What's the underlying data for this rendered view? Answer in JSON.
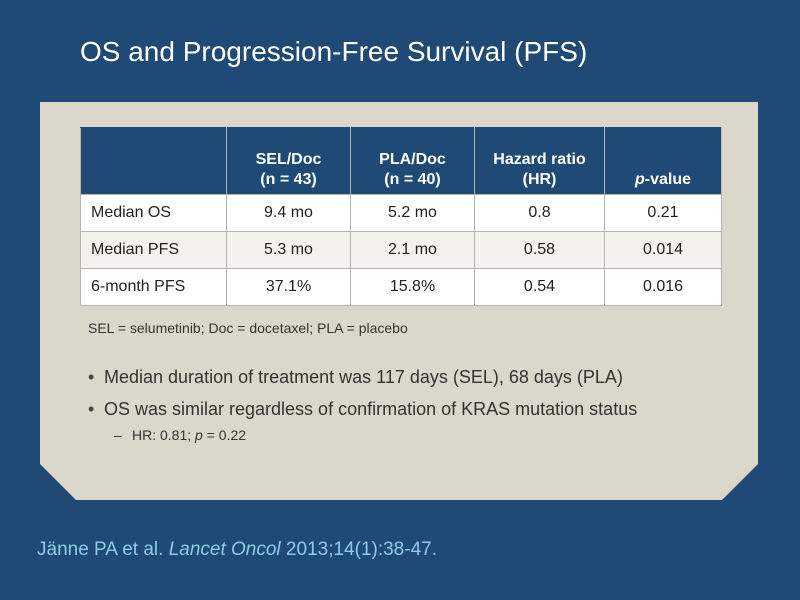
{
  "slide": {
    "title": "OS and Progression-Free Survival (PFS)"
  },
  "table": {
    "headers": [
      "",
      [
        "SEL/Doc",
        "(n = 43)"
      ],
      [
        "PLA/Doc",
        "(n = 40)"
      ],
      [
        "Hazard ratio",
        "(HR)"
      ],
      [
        "p",
        "-value"
      ]
    ],
    "rows": [
      [
        "Median OS",
        "9.4 mo",
        "5.2 mo",
        "0.8",
        "0.21"
      ],
      [
        "Median PFS",
        "5.3 mo",
        "2.1 mo",
        "0.58",
        "0.014"
      ],
      [
        "6-month PFS",
        "37.1%",
        "15.8%",
        "0.54",
        "0.016"
      ]
    ]
  },
  "footnote": "SEL = selumetinib; Doc = docetaxel; PLA = placebo",
  "bullets": [
    "Median duration of treatment was 117 days (SEL), 68 days (PLA)",
    "OS was similar regardless of confirmation of KRAS mutation status"
  ],
  "subbullet": {
    "dash": "–",
    "prefix": "HR: 0.81; ",
    "italic": "p",
    "suffix": " = 0.22"
  },
  "citation": {
    "authors": "Jänne PA et al. ",
    "journal": "Lancet Oncol",
    "details": " 2013;14(1):38-47."
  },
  "colors": {
    "background": "#1f4a75",
    "panel": "#dbd7cb",
    "header_fill": "#1f4a75",
    "citation_text": "#8fcbe6"
  }
}
